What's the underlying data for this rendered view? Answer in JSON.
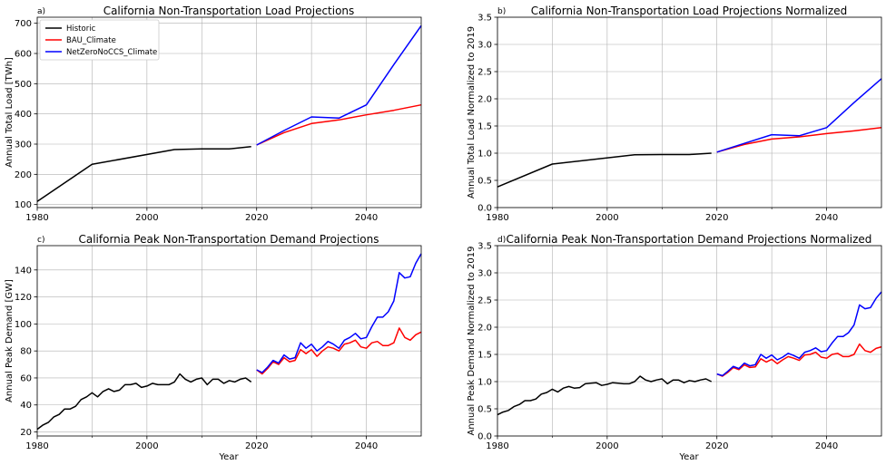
{
  "colors": {
    "Historic": "#000000",
    "BAU_Climate": "#ff0000",
    "NetZeroNoCCS_Climate": "#0000ff",
    "grid": "#b0b0b0"
  },
  "chart_data": [
    {
      "type": "line",
      "panel_label": "a)",
      "title": "California Non-Transportation Load Projections",
      "xlabel": "",
      "ylabel": "Annual Total Load [TWh]",
      "xlim": [
        1980,
        2050
      ],
      "ylim": [
        90,
        720
      ],
      "xticks": [
        1980,
        2000,
        2020,
        2040
      ],
      "xtick_labels": [
        "1980",
        "2000",
        "2020",
        "2040"
      ],
      "yticks": [
        100,
        200,
        300,
        400,
        500,
        600,
        700
      ],
      "ytick_labels": [
        "100",
        "200",
        "300",
        "400",
        "500",
        "600",
        "700"
      ],
      "grid": true,
      "legend": {
        "position": "top-left",
        "entries": [
          "Historic",
          "BAU_Climate",
          "NetZeroNoCCS_Climate"
        ]
      },
      "series": [
        {
          "name": "Historic",
          "x": [
            1980,
            1990,
            2005,
            2010,
            2015,
            2019
          ],
          "y": [
            110,
            233,
            282,
            284,
            284,
            292
          ]
        },
        {
          "name": "BAU_Climate",
          "x": [
            2020,
            2025,
            2030,
            2035,
            2040,
            2045,
            2050
          ],
          "y": [
            297,
            338,
            368,
            380,
            397,
            412,
            430
          ]
        },
        {
          "name": "NetZeroNoCCS_Climate",
          "x": [
            2020,
            2025,
            2030,
            2035,
            2040,
            2045,
            2050
          ],
          "y": [
            297,
            345,
            390,
            386,
            430,
            563,
            692
          ]
        }
      ]
    },
    {
      "type": "line",
      "panel_label": "b)",
      "title": "California Non-Transportation Load Projections Normalized",
      "xlabel": "",
      "ylabel": "Annual Total Load Normalized to 2019",
      "xlim": [
        1980,
        2050
      ],
      "ylim": [
        0,
        3.5
      ],
      "xticks": [
        1980,
        2000,
        2020,
        2040
      ],
      "xtick_labels": [
        "1980",
        "2000",
        "2020",
        "2040"
      ],
      "yticks": [
        0,
        0.5,
        1.0,
        1.5,
        2.0,
        2.5,
        3.0,
        3.5
      ],
      "ytick_labels": [
        "0.0",
        "0.5",
        "1.0",
        "1.5",
        "2.0",
        "2.5",
        "3.0",
        "3.5"
      ],
      "grid": true,
      "series": [
        {
          "name": "Historic",
          "x": [
            1980,
            1990,
            2005,
            2010,
            2015,
            2019
          ],
          "y": [
            0.38,
            0.8,
            0.97,
            0.975,
            0.975,
            1.0
          ]
        },
        {
          "name": "BAU_Climate",
          "x": [
            2020,
            2025,
            2030,
            2035,
            2040,
            2045,
            2050
          ],
          "y": [
            1.02,
            1.16,
            1.26,
            1.3,
            1.36,
            1.41,
            1.47
          ]
        },
        {
          "name": "NetZeroNoCCS_Climate",
          "x": [
            2020,
            2025,
            2030,
            2035,
            2040,
            2045,
            2050
          ],
          "y": [
            1.02,
            1.18,
            1.34,
            1.32,
            1.47,
            1.93,
            2.37
          ]
        }
      ]
    },
    {
      "type": "line",
      "panel_label": "c)",
      "title": "California Peak Non-Transportation Demand Projections",
      "xlabel": "Year",
      "ylabel": "Annual Peak Demand [GW]",
      "xlim": [
        1980,
        2050
      ],
      "ylim": [
        17,
        158
      ],
      "xticks": [
        1980,
        2000,
        2020,
        2040
      ],
      "xtick_labels": [
        "1980",
        "2000",
        "2020",
        "2040"
      ],
      "yticks": [
        20,
        40,
        60,
        80,
        100,
        120,
        140
      ],
      "ytick_labels": [
        "20",
        "40",
        "60",
        "80",
        "100",
        "120",
        "140"
      ],
      "grid": true,
      "series": [
        {
          "name": "Historic",
          "x": [
            1980,
            1981,
            1982,
            1983,
            1984,
            1985,
            1986,
            1987,
            1988,
            1989,
            1990,
            1991,
            1992,
            1993,
            1994,
            1995,
            1996,
            1997,
            1998,
            1999,
            2000,
            2001,
            2002,
            2003,
            2004,
            2005,
            2006,
            2007,
            2008,
            2009,
            2010,
            2011,
            2012,
            2013,
            2014,
            2015,
            2016,
            2017,
            2018,
            2019
          ],
          "y": [
            22,
            25,
            27,
            31,
            33,
            37,
            37,
            39,
            44,
            46,
            49,
            46,
            50,
            52,
            50,
            51,
            55,
            55,
            56,
            53,
            54,
            56,
            55,
            55,
            55,
            57,
            63,
            59,
            57,
            59,
            60,
            55,
            59,
            59,
            56,
            58,
            57,
            59,
            60,
            57
          ]
        },
        {
          "name": "BAU_Climate",
          "x": [
            2020,
            2021,
            2022,
            2023,
            2024,
            2025,
            2026,
            2027,
            2028,
            2029,
            2030,
            2031,
            2032,
            2033,
            2034,
            2035,
            2036,
            2037,
            2038,
            2039,
            2040,
            2041,
            2042,
            2043,
            2044,
            2045,
            2046,
            2047,
            2048,
            2049,
            2050
          ],
          "y": [
            66,
            63,
            67,
            72,
            70,
            75,
            72,
            73,
            81,
            78,
            81,
            76,
            80,
            83,
            82,
            80,
            85,
            86,
            88,
            83,
            82,
            86,
            87,
            84,
            84,
            86,
            97,
            90,
            88,
            92,
            94
          ]
        },
        {
          "name": "NetZeroNoCCS_Climate",
          "x": [
            2020,
            2021,
            2022,
            2023,
            2024,
            2025,
            2026,
            2027,
            2028,
            2029,
            2030,
            2031,
            2032,
            2033,
            2034,
            2035,
            2036,
            2037,
            2038,
            2039,
            2040,
            2041,
            2042,
            2043,
            2044,
            2045,
            2046,
            2047,
            2048,
            2049,
            2050
          ],
          "y": [
            66,
            64,
            68,
            73,
            71,
            77,
            74,
            75,
            86,
            82,
            85,
            80,
            83,
            87,
            85,
            82,
            88,
            90,
            93,
            89,
            90,
            98,
            105,
            105,
            109,
            117,
            138,
            134,
            135,
            145,
            152
          ]
        }
      ]
    },
    {
      "type": "line",
      "panel_label": "d)",
      "title": "California Peak Non-Transportation Demand Projections Normalized",
      "xlabel": "Year",
      "ylabel": "Annual Peak Demand Normalized to 2019",
      "xlim": [
        1980,
        2050
      ],
      "ylim": [
        0,
        3.5
      ],
      "xticks": [
        1980,
        2000,
        2020,
        2040
      ],
      "xtick_labels": [
        "1980",
        "2000",
        "2020",
        "2040"
      ],
      "yticks": [
        0,
        0.5,
        1.0,
        1.5,
        2.0,
        2.5,
        3.0,
        3.5
      ],
      "ytick_labels": [
        "0.0",
        "0.5",
        "1.0",
        "1.5",
        "2.0",
        "2.5",
        "3.0",
        "3.5"
      ],
      "grid": true,
      "series": [
        {
          "name": "Historic",
          "x": [
            1980,
            1981,
            1982,
            1983,
            1984,
            1985,
            1986,
            1987,
            1988,
            1989,
            1990,
            1991,
            1992,
            1993,
            1994,
            1995,
            1996,
            1997,
            1998,
            1999,
            2000,
            2001,
            2002,
            2003,
            2004,
            2005,
            2006,
            2007,
            2008,
            2009,
            2010,
            2011,
            2012,
            2013,
            2014,
            2015,
            2016,
            2017,
            2018,
            2019
          ],
          "y": [
            0.39,
            0.44,
            0.47,
            0.54,
            0.58,
            0.65,
            0.65,
            0.68,
            0.77,
            0.8,
            0.86,
            0.81,
            0.88,
            0.91,
            0.88,
            0.89,
            0.96,
            0.97,
            0.98,
            0.93,
            0.95,
            0.98,
            0.97,
            0.96,
            0.96,
            1.0,
            1.1,
            1.03,
            1.0,
            1.03,
            1.05,
            0.96,
            1.03,
            1.03,
            0.98,
            1.02,
            1.0,
            1.03,
            1.05,
            1.0
          ]
        },
        {
          "name": "BAU_Climate",
          "x": [
            2020,
            2021,
            2022,
            2023,
            2024,
            2025,
            2026,
            2027,
            2028,
            2029,
            2030,
            2031,
            2032,
            2033,
            2034,
            2035,
            2036,
            2037,
            2038,
            2039,
            2040,
            2041,
            2042,
            2043,
            2044,
            2045,
            2046,
            2047,
            2048,
            2049,
            2050
          ],
          "y": [
            1.14,
            1.1,
            1.17,
            1.26,
            1.22,
            1.31,
            1.26,
            1.27,
            1.42,
            1.36,
            1.41,
            1.33,
            1.4,
            1.46,
            1.43,
            1.39,
            1.49,
            1.5,
            1.54,
            1.45,
            1.43,
            1.5,
            1.52,
            1.46,
            1.46,
            1.5,
            1.69,
            1.57,
            1.54,
            1.61,
            1.64
          ]
        },
        {
          "name": "NetZeroNoCCS_Climate",
          "x": [
            2020,
            2021,
            2022,
            2023,
            2024,
            2025,
            2026,
            2027,
            2028,
            2029,
            2030,
            2031,
            2032,
            2033,
            2034,
            2035,
            2036,
            2037,
            2038,
            2039,
            2040,
            2041,
            2042,
            2043,
            2044,
            2045,
            2046,
            2047,
            2048,
            2049,
            2050
          ],
          "y": [
            1.14,
            1.11,
            1.19,
            1.28,
            1.24,
            1.34,
            1.29,
            1.31,
            1.5,
            1.43,
            1.49,
            1.4,
            1.45,
            1.52,
            1.48,
            1.43,
            1.54,
            1.57,
            1.62,
            1.55,
            1.57,
            1.71,
            1.83,
            1.83,
            1.9,
            2.04,
            2.41,
            2.34,
            2.36,
            2.53,
            2.65
          ]
        }
      ]
    }
  ]
}
